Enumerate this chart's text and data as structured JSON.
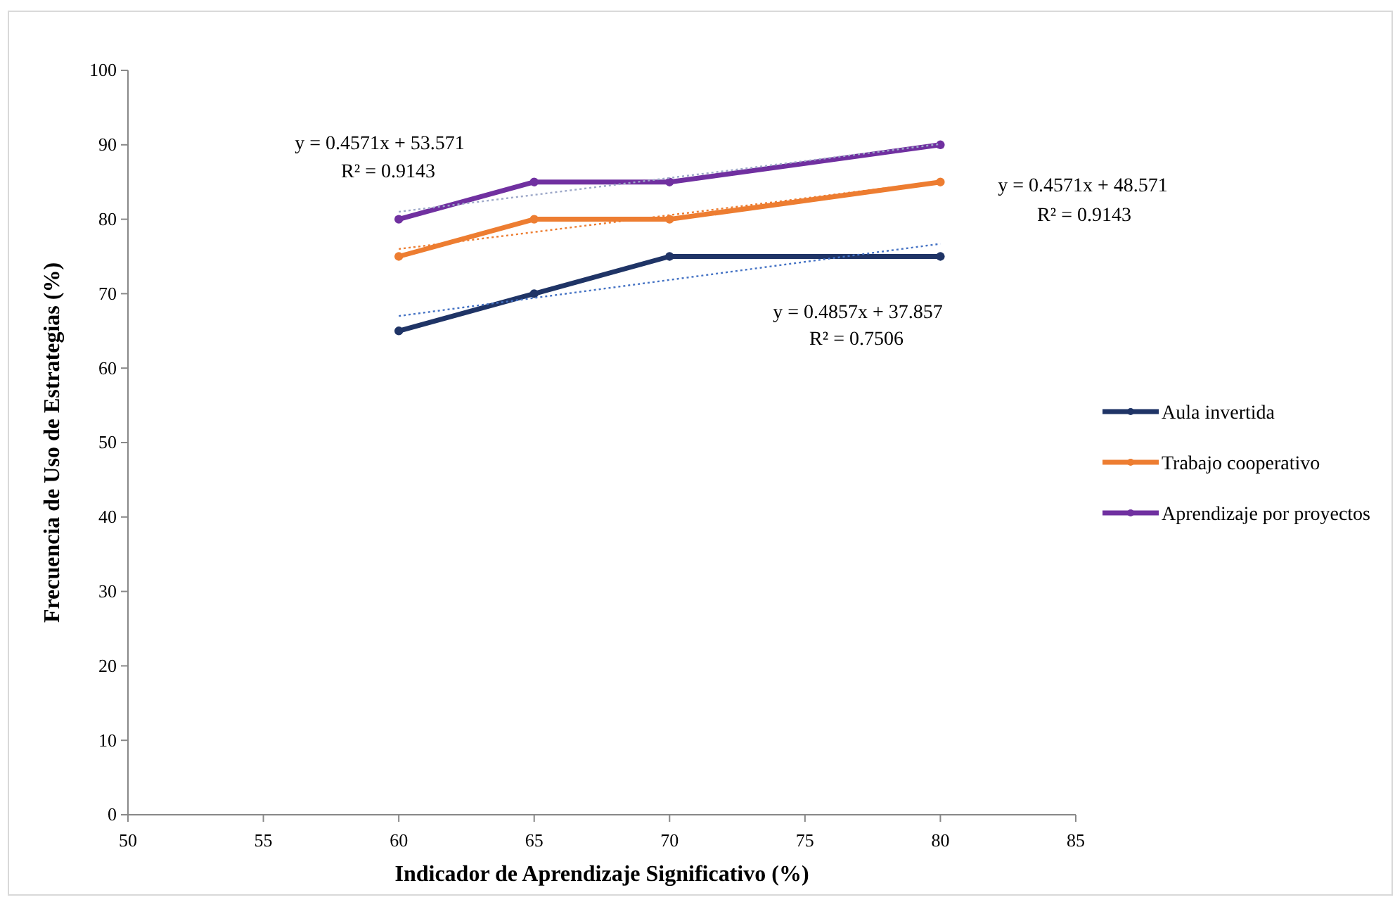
{
  "chart_data": {
    "type": "line",
    "xlabel": "Indicador de Aprendizaje  Significativo  (%)",
    "ylabel": "Frecuencia de Uso de Estrategias (%)",
    "xlim": [
      50,
      85
    ],
    "xticks": [
      50,
      55,
      60,
      65,
      70,
      75,
      80,
      85
    ],
    "ylim": [
      0,
      100
    ],
    "yticks": [
      0,
      10,
      20,
      30,
      40,
      50,
      60,
      70,
      80,
      90,
      100
    ],
    "grid": false,
    "legend": "right",
    "marker": "circle",
    "line_style": "solid",
    "series": [
      {
        "name": "Aula invertida",
        "color": "#1f3466",
        "x": [
          60,
          65,
          70,
          80
        ],
        "values": [
          65,
          70,
          75,
          75
        ]
      },
      {
        "name": "Trabajo cooperativo",
        "color": "#ed7d31",
        "x": [
          60,
          65,
          70,
          80
        ],
        "values": [
          75,
          80,
          80,
          85
        ]
      },
      {
        "name": "Aprendizaje por proyectos",
        "color": "#7030a0",
        "x": [
          60,
          65,
          70,
          80
        ],
        "values": [
          80,
          85,
          85,
          90
        ]
      },
      {
        "type": "line",
        "color": "#4472c4",
        "line_style": "dotted",
        "marker": "none",
        "x": [
          60,
          80
        ],
        "values": [
          67.0,
          76.7
        ]
      },
      {
        "type": "line",
        "color": "#ed7d31",
        "line_style": "dotted",
        "marker": "none",
        "x": [
          60,
          80
        ],
        "values": [
          76.0,
          85.1
        ]
      },
      {
        "type": "line",
        "color": "#9da8c8",
        "line_style": "dotted",
        "marker": "none",
        "x": [
          60,
          80
        ],
        "values": [
          81.0,
          90.1
        ]
      }
    ],
    "annotations": [
      "y = 0.4571x + 53.571",
      "R² = 0.9143",
      "y = 0.4571x + 48.571",
      "R² = 0.9143",
      "y = 0.4857x + 37.857",
      "R² = 0.7506"
    ]
  }
}
